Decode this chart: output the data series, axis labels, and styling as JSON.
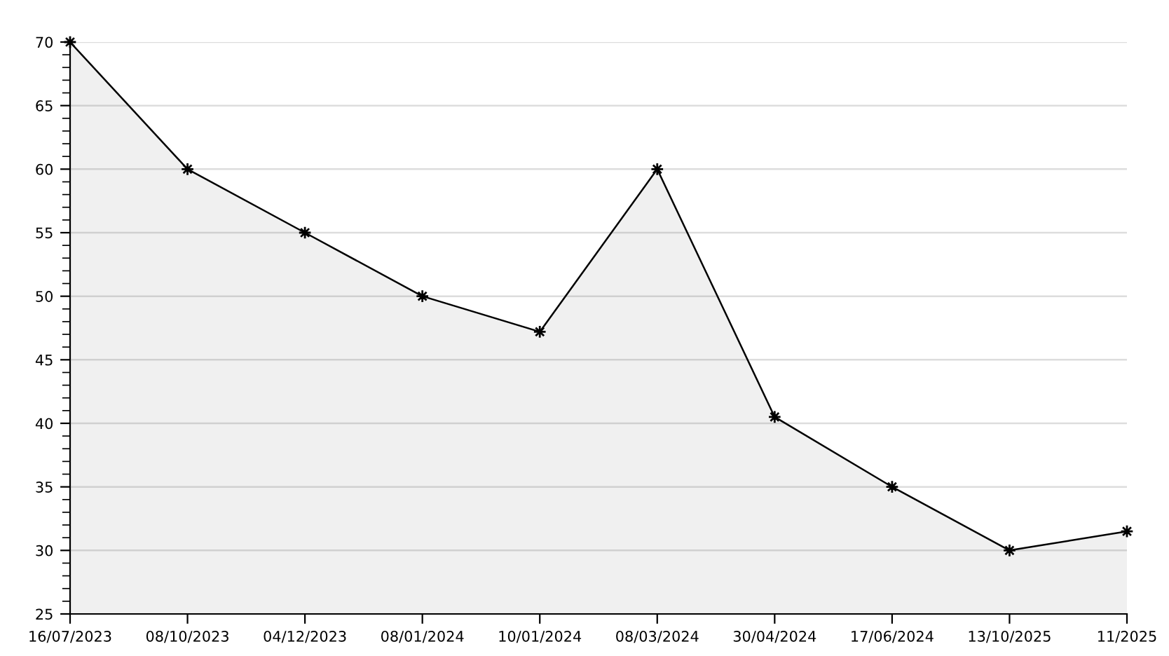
{
  "chart_data": {
    "type": "area",
    "categories": [
      "16/07/2023",
      "08/10/2023",
      "04/12/2023",
      "08/01/2024",
      "10/01/2024",
      "08/03/2024",
      "30/04/2024",
      "17/06/2024",
      "13/10/2025",
      "11/2025"
    ],
    "series": [
      {
        "color": "#000000",
        "values": [
          70,
          60,
          55,
          50,
          47.2,
          60,
          40.5,
          35,
          30,
          31.5
        ]
      }
    ],
    "ylim": [
      25,
      70
    ],
    "yticks": [
      25,
      30,
      35,
      40,
      45,
      50,
      55,
      60,
      65,
      70
    ],
    "grid": "y",
    "marker": "star",
    "line_style": "solid"
  }
}
